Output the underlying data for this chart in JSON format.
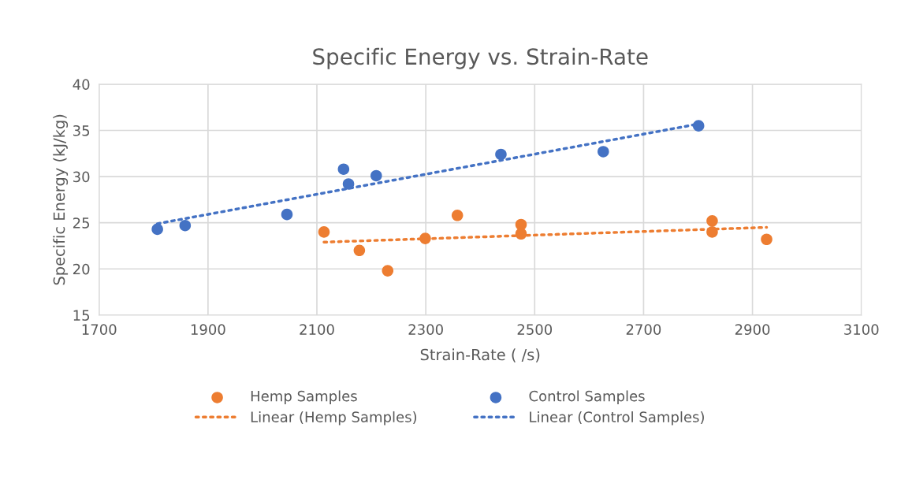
{
  "chart_data": {
    "type": "scatter",
    "title": "Specific Energy vs. Strain-Rate",
    "xlabel": "Strain-Rate ( /s)",
    "ylabel": "Specific Energy (kJ/kg)",
    "xlim": [
      1700,
      3100
    ],
    "xticks": [
      1700,
      1900,
      2100,
      2300,
      2500,
      2700,
      2900,
      3100
    ],
    "ylim": [
      15,
      40
    ],
    "yticks": [
      15,
      20,
      25,
      30,
      35,
      40
    ],
    "grid": true,
    "legend": "bottom",
    "marker": "circle",
    "series": [
      {
        "name": "Hemp Samples",
        "color": "#ed7d31",
        "x": [
          2113,
          2178,
          2230,
          2299,
          2358,
          2475,
          2475,
          2826,
          2826,
          2926
        ],
        "values": [
          24.0,
          22.0,
          19.8,
          23.3,
          25.8,
          24.8,
          23.8,
          25.2,
          24.0,
          23.2
        ]
      },
      {
        "name": "Control Samples",
        "color": "#4472c4",
        "x": [
          1807,
          1858,
          2045,
          2149,
          2158,
          2209,
          2438,
          2626,
          2801
        ],
        "values": [
          24.3,
          24.7,
          25.9,
          30.8,
          29.2,
          30.1,
          32.4,
          32.7,
          35.5
        ]
      },
      {
        "name": "Linear (Hemp Samples)",
        "color": "#ed7d31",
        "type": "line",
        "line_style": "dotted",
        "marker": "none",
        "x": [
          2113,
          2926
        ],
        "values": [
          22.9,
          24.5
        ]
      },
      {
        "name": "Linear (Control Samples)",
        "color": "#4472c4",
        "type": "line",
        "line_style": "dotted",
        "marker": "none",
        "x": [
          1807,
          2801
        ],
        "values": [
          24.9,
          35.7
        ]
      }
    ]
  }
}
